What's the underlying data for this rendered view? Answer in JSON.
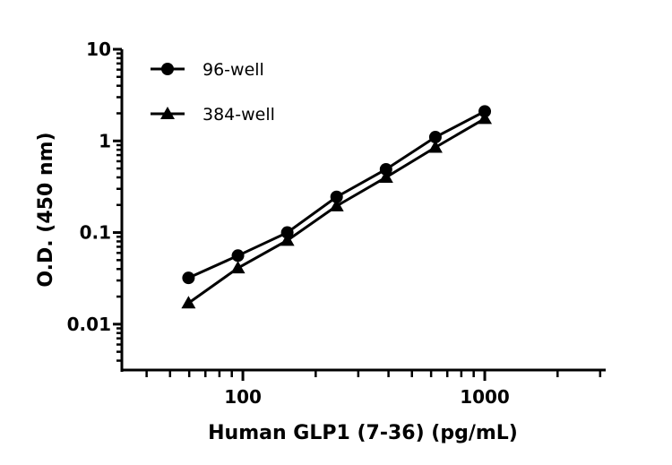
{
  "chart_data": {
    "type": "line",
    "title": "",
    "xlabel": "Human GLP1 (7-36) (pg/mL)",
    "ylabel": "O.D. (450 nm)",
    "xscale": "log",
    "yscale": "log",
    "xlim": [
      31.6,
      3162
    ],
    "ylim": [
      0.00316,
      10
    ],
    "x_ticks": [
      {
        "value": 100,
        "label": "100"
      },
      {
        "value": 1000,
        "label": "1000"
      }
    ],
    "y_ticks": [
      {
        "value": 10,
        "label": "10"
      },
      {
        "value": 1,
        "label": "1"
      },
      {
        "value": 0.1,
        "label": "0.1"
      },
      {
        "value": 0.01,
        "label": "0.01"
      }
    ],
    "grid": false,
    "legend_placement": "top-left",
    "x": [
      59.6,
      95.4,
      152.6,
      244.1,
      390.6,
      625,
      1000
    ],
    "series": [
      {
        "name": "96-well",
        "marker": "circle",
        "color": "#000000",
        "values": [
          0.032,
          0.056,
          0.1,
          0.245,
          0.49,
          1.1,
          2.1
        ]
      },
      {
        "name": "384-well",
        "marker": "triangle",
        "color": "#000000",
        "values": [
          0.017,
          0.041,
          0.082,
          0.195,
          0.4,
          0.85,
          1.75
        ]
      }
    ]
  }
}
